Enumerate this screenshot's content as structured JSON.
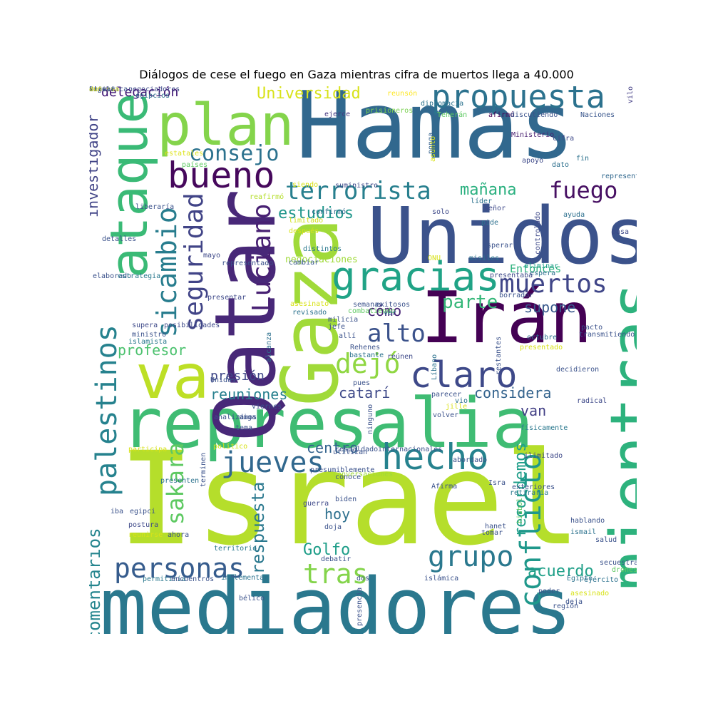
{
  "title": "Diálogos de cese el fuego en Gaza mientras cifra de muertos llega a 40.000",
  "words": [
    {
      "text": "Hamas",
      "color": "#31688e"
    },
    {
      "text": "Israel",
      "color": "#b5de2b"
    },
    {
      "text": "mediadores",
      "color": "#2a788e"
    },
    {
      "text": "Unidos",
      "color": "#3b528b"
    },
    {
      "text": "represalia",
      "color": "#3fbc73"
    },
    {
      "text": "mientras",
      "color": "#2db27d"
    },
    {
      "text": "Irán",
      "color": "#440154"
    },
    {
      "text": "Qatar",
      "color": "#482878"
    },
    {
      "text": "Gaza",
      "color": "#a0da39"
    },
    {
      "text": "plan",
      "color": "#84d44b"
    },
    {
      "text": "ataque",
      "color": "#3aba76"
    },
    {
      "text": "va",
      "color": "#bddf26"
    },
    {
      "text": "propuesta",
      "color": "#2c728e"
    },
    {
      "text": "bueno",
      "color": "#46085c"
    },
    {
      "text": "gracias",
      "color": "#20a386"
    },
    {
      "text": "claro",
      "color": "#3e4989"
    },
    {
      "text": "hecho",
      "color": "#26828e"
    },
    {
      "text": "terrorista",
      "color": "#277f8e"
    },
    {
      "text": "Luciano",
      "color": "#482173"
    },
    {
      "text": "conflicto",
      "color": "#1f988b"
    },
    {
      "text": "palestinos",
      "color": "#26828e"
    },
    {
      "text": "sicambio",
      "color": "#287d8e"
    },
    {
      "text": "seguridad",
      "color": "#414487"
    },
    {
      "text": "muertos",
      "color": "#404688"
    },
    {
      "text": "jueves",
      "color": "#31688e"
    },
    {
      "text": "personas",
      "color": "#365c8d"
    },
    {
      "text": "grupo",
      "color": "#2a788e"
    },
    {
      "text": "tras",
      "color": "#84d44b"
    },
    {
      "text": "dejó",
      "color": "#90d743"
    },
    {
      "text": "alto",
      "color": "#3b528b"
    },
    {
      "text": "sakara",
      "color": "#5ec962"
    },
    {
      "text": "fuego",
      "color": "#471063"
    },
    {
      "text": "consejo",
      "color": "#2c728e"
    },
    {
      "text": "Universidad",
      "color": "#d8e219"
    },
    {
      "text": "investigador",
      "color": "#414487"
    },
    {
      "text": "comentarios",
      "color": "#25858e"
    },
    {
      "text": "respuesta",
      "color": "#2a788e"
    },
    {
      "text": "recordemos",
      "color": "#1f9e89"
    },
    {
      "text": "estudios",
      "color": "#1f968b"
    },
    {
      "text": "mañana",
      "color": "#2ab07f"
    },
    {
      "text": "parte",
      "color": "#35b779"
    },
    {
      "text": "supone",
      "color": "#38598c"
    },
    {
      "text": "profesor",
      "color": "#4ac16d"
    },
    {
      "text": "cómo",
      "color": "#482475"
    },
    {
      "text": "reuniones",
      "color": "#27808e"
    },
    {
      "text": "catarí",
      "color": "#3e4989"
    },
    {
      "text": "considera",
      "color": "#33638d"
    },
    {
      "text": "van",
      "color": "#423f85"
    },
    {
      "text": "presión",
      "color": "#3f4788"
    },
    {
      "text": "centro",
      "color": "#33638d"
    },
    {
      "text": "hoy",
      "color": "#2d708e"
    },
    {
      "text": "Golfo",
      "color": "#1f9e89"
    },
    {
      "text": "acuerdo",
      "color": "#1fa088"
    },
    {
      "text": "delegación",
      "color": "#3b0f70"
    },
    {
      "text": "Entonces",
      "color": "#2db27d"
    },
    {
      "text": "negociaciones",
      "color": "#a0da39"
    },
    {
      "text": "negociadores",
      "color": "#3e4989"
    },
    {
      "text": "egipcios",
      "color": "#2d708e"
    },
    {
      "text": "reunsón",
      "color": "#fde725"
    },
    {
      "text": "diplomacia",
      "color": "#2c728e"
    },
    {
      "text": "ejerce",
      "color": "#453781"
    },
    {
      "text": "prisioneros",
      "color": "#7ad151"
    },
    {
      "text": "Teherán",
      "color": "#5ec962"
    },
    {
      "text": "afirmó",
      "color": "#440154"
    },
    {
      "text": "discutiendo",
      "color": "#3b528b"
    },
    {
      "text": "Naciones",
      "color": "#39568c"
    },
    {
      "text": "vilo",
      "color": "#433e85"
    },
    {
      "text": "Ministerio",
      "color": "#481f70"
    },
    {
      "text": "cifra",
      "color": "#3e4989"
    },
    {
      "text": "apoyo",
      "color": "#3e4989"
    },
    {
      "text": "fin",
      "color": "#2c728e"
    },
    {
      "text": "dato",
      "color": "#2d708e"
    },
    {
      "text": "representen",
      "color": "#31688e"
    },
    {
      "text": "ponga",
      "color": "#34618d"
    },
    {
      "text": "asunto",
      "color": "#d8e219"
    },
    {
      "text": "estatales",
      "color": "#dde318"
    },
    {
      "text": "países",
      "color": "#5ec962"
    },
    {
      "text": "siendo",
      "color": "#d8e219"
    },
    {
      "text": "suministro",
      "color": "#3e4989"
    },
    {
      "text": "reafirmó",
      "color": "#b5de2b"
    },
    {
      "text": "liberaría",
      "color": "#3b528b"
    },
    {
      "text": "detalles",
      "color": "#3b528b"
    },
    {
      "text": "líder",
      "color": "#2c728e"
    },
    {
      "text": "solo",
      "color": "#3e4989"
    },
    {
      "text": "señor",
      "color": "#3e4989"
    },
    {
      "text": "limitado",
      "color": "#d0e11c"
    },
    {
      "text": "confirmó",
      "color": "#31688e"
    },
    {
      "text": "después",
      "color": "#d8e219"
    },
    {
      "text": "pide",
      "color": "#2d708e"
    },
    {
      "text": "distintos",
      "color": "#2a788e"
    },
    {
      "text": "esperar",
      "color": "#3b528b"
    },
    {
      "text": "ayuda",
      "color": "#2d708e"
    },
    {
      "text": "pasa",
      "color": "#3e4989"
    },
    {
      "text": "controlado",
      "color": "#3e4989"
    },
    {
      "text": "mayo",
      "color": "#3e4989"
    },
    {
      "text": "representado",
      "color": "#3b528b"
    },
    {
      "text": "ONU",
      "color": "#d8e219"
    },
    {
      "text": "misiles",
      "color": "#2c728e"
    },
    {
      "text": "cambiar",
      "color": "#38598c"
    },
    {
      "text": "elaborado",
      "color": "#3b528b"
    },
    {
      "text": "estrategia",
      "color": "#2a788e"
    },
    {
      "text": "eliminar",
      "color": "#1f9e89"
    },
    {
      "text": "espera",
      "color": "#2d708e"
    },
    {
      "text": "presentaba",
      "color": "#3e4989"
    },
    {
      "text": "presentar",
      "color": "#3e4989"
    },
    {
      "text": "borrador",
      "color": "#3b528b"
    },
    {
      "text": "asesinato",
      "color": "#d8e219"
    },
    {
      "text": "revisado",
      "color": "#2c728e"
    },
    {
      "text": "combatiendo",
      "color": "#5ec962"
    },
    {
      "text": "semanas",
      "color": "#3b528b"
    },
    {
      "text": "exitosos",
      "color": "#3b528b"
    },
    {
      "text": "ver",
      "color": "#2c728e"
    },
    {
      "text": "supera",
      "color": "#3e4989"
    },
    {
      "text": "milicia",
      "color": "#3b528b"
    },
    {
      "text": "jefe",
      "color": "#3b528b"
    },
    {
      "text": "alcanza",
      "color": "#2d708e"
    },
    {
      "text": "restantes",
      "color": "#3b528b"
    },
    {
      "text": "pacto",
      "color": "#3b528b"
    },
    {
      "text": "ministro",
      "color": "#3b528b"
    },
    {
      "text": "posibilidades",
      "color": "#3e4989"
    },
    {
      "text": "allí",
      "color": "#3b528b"
    },
    {
      "text": "Rehenes",
      "color": "#3b528b"
    },
    {
      "text": "octubre",
      "color": "#2c728e"
    },
    {
      "text": "presentado",
      "color": "#d8e219"
    },
    {
      "text": "transmitiendo",
      "color": "#3b528b"
    },
    {
      "text": "islamista",
      "color": "#2a788e"
    },
    {
      "text": "Líbano",
      "color": "#2c728e"
    },
    {
      "text": "decidieron",
      "color": "#3b528b"
    },
    {
      "text": "bastante",
      "color": "#2c728e"
    },
    {
      "text": "reúnen",
      "color": "#3e4989"
    },
    {
      "text": "Unidas",
      "color": "#3b528b"
    },
    {
      "text": "pues",
      "color": "#3b528b"
    },
    {
      "text": "parecer",
      "color": "#3b528b"
    },
    {
      "text": "vio",
      "color": "#2d708e"
    },
    {
      "text": "jille",
      "color": "#d8e219"
    },
    {
      "text": "viernes",
      "color": "#3b528b"
    },
    {
      "text": "radical",
      "color": "#3e4989"
    },
    {
      "text": "diga",
      "color": "#3b528b"
    },
    {
      "text": "volver",
      "color": "#3b528b"
    },
    {
      "text": "tema",
      "color": "#3b528b"
    },
    {
      "text": "ninguno",
      "color": "#3b528b"
    },
    {
      "text": "físicamente",
      "color": "#2a788e"
    },
    {
      "text": "participa",
      "color": "#d8e219"
    },
    {
      "text": "político",
      "color": "#d8e219"
    },
    {
      "text": "respaldado",
      "color": "#3b528b"
    },
    {
      "text": "internacionales",
      "color": "#3b528b"
    },
    {
      "text": "ilimitado",
      "color": "#3e4989"
    },
    {
      "text": "analizamos",
      "color": "#3b528b"
    },
    {
      "text": "presenten",
      "color": "#2c728e"
    },
    {
      "text": "terminen",
      "color": "#3b528b"
    },
    {
      "text": "conversaciones",
      "color": "#a0da39"
    },
    {
      "text": "utilizan",
      "color": "#3b528b"
    },
    {
      "text": "abordado",
      "color": "#3b528b"
    },
    {
      "text": "Isra",
      "color": "#3b528b"
    },
    {
      "text": "presumiblemente",
      "color": "#3b528b"
    },
    {
      "text": "conoce",
      "color": "#3b528b"
    },
    {
      "text": "exteriores",
      "color": "#3b528b"
    },
    {
      "text": "biden",
      "color": "#3b528b"
    },
    {
      "text": "guerra",
      "color": "#3e4989"
    },
    {
      "text": "hisbol",
      "color": "#5ec962"
    },
    {
      "text": "retiraría",
      "color": "#2a788e"
    },
    {
      "text": "Afirma",
      "color": "#3b528b"
    },
    {
      "text": "iba",
      "color": "#3b528b"
    },
    {
      "text": "egipci",
      "color": "#3b528b"
    },
    {
      "text": "postura",
      "color": "#3e4989"
    },
    {
      "text": "hablando",
      "color": "#3b528b"
    },
    {
      "text": "reunirse",
      "color": "#d8e219"
    },
    {
      "text": "doja",
      "color": "#3b528b"
    },
    {
      "text": "hanet",
      "color": "#3b528b"
    },
    {
      "text": "ahora",
      "color": "#3b528b"
    },
    {
      "text": "tomar",
      "color": "#3b528b"
    },
    {
      "text": "ismail",
      "color": "#2c728e"
    },
    {
      "text": "salud",
      "color": "#3b528b"
    },
    {
      "text": "territorio",
      "color": "#2a788e"
    },
    {
      "text": "debatir",
      "color": "#3b528b"
    },
    {
      "text": "secuestradas",
      "color": "#3b528b"
    },
    {
      "text": "drones",
      "color": "#5ec962"
    },
    {
      "text": "permitiría",
      "color": "#2a788e"
    },
    {
      "text": "encuentros",
      "color": "#3b528b"
    },
    {
      "text": "implementar",
      "color": "#2c728e"
    },
    {
      "text": "dos",
      "color": "#3b528b"
    },
    {
      "text": "Egipto",
      "color": "#2c728e"
    },
    {
      "text": "ejército",
      "color": "#2c728e"
    },
    {
      "text": "islámica",
      "color": "#3b528b"
    },
    {
      "text": "asesinado",
      "color": "#d8e219"
    },
    {
      "text": "bélico",
      "color": "#3b528b"
    },
    {
      "text": "poder",
      "color": "#3b528b"
    },
    {
      "text": "deja",
      "color": "#3b528b"
    },
    {
      "text": "región",
      "color": "#3b528b"
    },
    {
      "text": "presencia",
      "color": "#3b528b"
    },
    {
      "text": "significa",
      "color": "#3b528b"
    },
    {
      "text": "recibe",
      "color": "#3b528b"
    },
    {
      "text": "defensa",
      "color": "#d8e219"
    },
    {
      "text": "hizo",
      "color": "#3b528b"
    },
    {
      "text": "atacar",
      "color": "#3b528b"
    },
    {
      "text": "í",
      "color": "#3b528b"
    },
    {
      "text": "tipo",
      "color": "#3b528b"
    },
    {
      "text": "seis",
      "color": "#3b528b"
    },
    {
      "text": "aun",
      "color": "#d8e219"
    }
  ]
}
